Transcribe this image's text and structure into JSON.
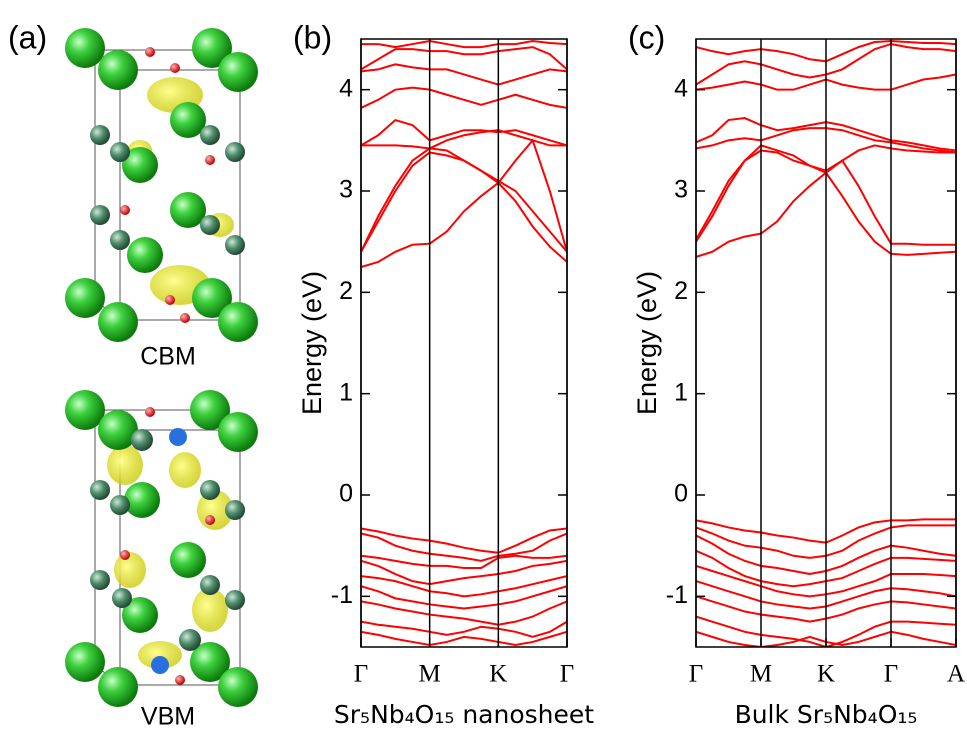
{
  "panel_a": {
    "label": "(a)",
    "structures": [
      {
        "label": "CBM"
      },
      {
        "label": "VBM"
      }
    ]
  },
  "chart_data": [
    {
      "type": "line",
      "label": "(b)",
      "ylabel": "Energy (eV)",
      "xlabel": "Sr₅Nb₄O₁₅ nanosheet",
      "color": "#ff0000",
      "xgrid": true,
      "x": [
        0,
        0.25,
        0.5,
        0.75,
        1,
        1.25,
        1.5,
        1.75,
        2,
        2.25,
        2.5,
        2.75,
        3
      ],
      "xlim": [
        0,
        3
      ],
      "xticks": [
        {
          "value": 0,
          "label": "Γ"
        },
        {
          "value": 1,
          "label": "M"
        },
        {
          "value": 2,
          "label": "K"
        },
        {
          "value": 3,
          "label": "Γ"
        }
      ],
      "ylim": [
        -1.5,
        4.5
      ],
      "yticks": [
        -1,
        0,
        1,
        2,
        3,
        4
      ],
      "series": [
        {
          "values": [
            2.25,
            2.3,
            2.4,
            2.47,
            2.48,
            2.6,
            2.8,
            2.95,
            3.08,
            2.9,
            2.65,
            2.45,
            2.3
          ]
        },
        {
          "values": [
            2.4,
            2.7,
            3.0,
            3.25,
            3.38,
            3.35,
            3.3,
            3.2,
            3.08,
            3.3,
            3.5,
            3.0,
            2.4
          ]
        },
        {
          "values": [
            2.4,
            2.75,
            3.05,
            3.3,
            3.42,
            3.4,
            3.3,
            3.2,
            3.1,
            3.0,
            2.8,
            2.6,
            2.4
          ]
        },
        {
          "values": [
            3.45,
            3.45,
            3.45,
            3.44,
            3.42,
            3.5,
            3.55,
            3.58,
            3.6,
            3.55,
            3.5,
            3.45,
            3.45
          ]
        },
        {
          "values": [
            3.45,
            3.55,
            3.7,
            3.65,
            3.5,
            3.55,
            3.6,
            3.6,
            3.58,
            3.6,
            3.55,
            3.5,
            3.45
          ]
        },
        {
          "values": [
            3.82,
            3.9,
            4.0,
            4.02,
            4.0,
            3.95,
            3.9,
            3.85,
            3.9,
            3.95,
            3.9,
            3.85,
            3.82
          ]
        },
        {
          "values": [
            4.18,
            4.2,
            4.25,
            4.22,
            4.2,
            4.2,
            4.15,
            4.1,
            4.05,
            4.1,
            4.15,
            4.2,
            4.18
          ]
        },
        {
          "values": [
            4.2,
            4.3,
            4.4,
            4.4,
            4.38,
            4.38,
            4.35,
            4.35,
            4.38,
            4.4,
            4.42,
            4.35,
            4.2
          ]
        },
        {
          "values": [
            4.45,
            4.45,
            4.42,
            4.45,
            4.48,
            4.45,
            4.42,
            4.42,
            4.45,
            4.45,
            4.48,
            4.46,
            4.45
          ]
        },
        {
          "values": [
            -0.33,
            -0.36,
            -0.4,
            -0.43,
            -0.45,
            -0.48,
            -0.52,
            -0.55,
            -0.57,
            -0.5,
            -0.42,
            -0.35,
            -0.33
          ]
        },
        {
          "values": [
            -0.38,
            -0.42,
            -0.5,
            -0.55,
            -0.58,
            -0.6,
            -0.62,
            -0.65,
            -0.6,
            -0.58,
            -0.55,
            -0.45,
            -0.38
          ]
        },
        {
          "values": [
            -0.6,
            -0.62,
            -0.65,
            -0.68,
            -0.7,
            -0.7,
            -0.72,
            -0.72,
            -0.62,
            -0.6,
            -0.62,
            -0.62,
            -0.6
          ]
        },
        {
          "values": [
            -0.65,
            -0.7,
            -0.78,
            -0.85,
            -0.88,
            -0.85,
            -0.82,
            -0.8,
            -0.78,
            -0.75,
            -0.7,
            -0.68,
            -0.65
          ]
        },
        {
          "values": [
            -0.8,
            -0.82,
            -0.85,
            -0.9,
            -0.95,
            -0.97,
            -1.0,
            -0.98,
            -0.95,
            -0.92,
            -0.88,
            -0.84,
            -0.8
          ]
        },
        {
          "values": [
            -0.9,
            -0.95,
            -1.02,
            -1.05,
            -1.08,
            -1.1,
            -1.12,
            -1.1,
            -1.08,
            -1.05,
            -1.0,
            -0.95,
            -0.9
          ]
        },
        {
          "values": [
            -1.05,
            -1.08,
            -1.12,
            -1.15,
            -1.18,
            -1.2,
            -1.22,
            -1.25,
            -1.28,
            -1.25,
            -1.2,
            -1.12,
            -1.05
          ]
        },
        {
          "values": [
            -1.25,
            -1.28,
            -1.3,
            -1.32,
            -1.35,
            -1.38,
            -1.35,
            -1.3,
            -1.32,
            -1.35,
            -1.4,
            -1.35,
            -1.25
          ]
        },
        {
          "values": [
            -1.35,
            -1.38,
            -1.42,
            -1.45,
            -1.48,
            -1.45,
            -1.4,
            -1.42,
            -1.45,
            -1.48,
            -1.45,
            -1.4,
            -1.35
          ]
        }
      ]
    },
    {
      "type": "line",
      "label": "(c)",
      "ylabel": "Energy (eV)",
      "xlabel": "Bulk Sr₅Nb₄O₁₅",
      "color": "#ff0000",
      "xgrid": true,
      "x": [
        0,
        0.25,
        0.5,
        0.75,
        1,
        1.25,
        1.5,
        1.75,
        2,
        2.25,
        2.5,
        2.75,
        3,
        3.25,
        3.5,
        3.75,
        4
      ],
      "xlim": [
        0,
        4
      ],
      "xticks": [
        {
          "value": 0,
          "label": "Γ"
        },
        {
          "value": 1,
          "label": "M"
        },
        {
          "value": 2,
          "label": "K"
        },
        {
          "value": 3,
          "label": "Γ"
        },
        {
          "value": 4,
          "label": "A"
        }
      ],
      "ylim": [
        -1.5,
        4.5
      ],
      "yticks": [
        -1,
        0,
        1,
        2,
        3,
        4
      ],
      "series": [
        {
          "values": [
            2.35,
            2.4,
            2.5,
            2.55,
            2.58,
            2.7,
            2.9,
            3.05,
            3.18,
            2.95,
            2.7,
            2.5,
            2.38,
            2.37,
            2.38,
            2.39,
            2.4
          ]
        },
        {
          "values": [
            2.5,
            2.75,
            3.05,
            3.3,
            3.45,
            3.4,
            3.35,
            3.25,
            3.18,
            3.3,
            3.05,
            2.75,
            2.48,
            2.48,
            2.47,
            2.47,
            2.47
          ]
        },
        {
          "values": [
            2.52,
            2.8,
            3.1,
            3.3,
            3.4,
            3.38,
            3.3,
            3.25,
            3.2,
            3.3,
            3.4,
            3.45,
            3.42,
            3.4,
            3.39,
            3.38,
            3.38
          ]
        },
        {
          "values": [
            3.42,
            3.45,
            3.5,
            3.52,
            3.5,
            3.55,
            3.6,
            3.62,
            3.62,
            3.6,
            3.55,
            3.5,
            3.48,
            3.45,
            3.42,
            3.4,
            3.38
          ]
        },
        {
          "values": [
            3.48,
            3.55,
            3.7,
            3.72,
            3.65,
            3.6,
            3.62,
            3.65,
            3.68,
            3.65,
            3.6,
            3.55,
            3.5,
            3.48,
            3.45,
            3.42,
            3.4
          ]
        },
        {
          "values": [
            4.0,
            4.02,
            4.05,
            4.08,
            4.05,
            4.0,
            4.0,
            4.05,
            4.1,
            4.05,
            4.02,
            4.0,
            4.0,
            4.05,
            4.1,
            4.12,
            4.15
          ]
        },
        {
          "values": [
            4.05,
            4.15,
            4.25,
            4.28,
            4.25,
            4.2,
            4.15,
            4.12,
            4.15,
            4.2,
            4.3,
            4.4,
            4.45,
            4.42,
            4.4,
            4.4,
            4.38
          ]
        },
        {
          "values": [
            4.42,
            4.38,
            4.35,
            4.38,
            4.4,
            4.38,
            4.35,
            4.3,
            4.28,
            4.35,
            4.42,
            4.47,
            4.48,
            4.47,
            4.46,
            4.46,
            4.45
          ]
        },
        {
          "values": [
            -0.25,
            -0.28,
            -0.32,
            -0.35,
            -0.37,
            -0.4,
            -0.42,
            -0.45,
            -0.47,
            -0.4,
            -0.32,
            -0.27,
            -0.25,
            -0.25,
            -0.24,
            -0.24,
            -0.24
          ]
        },
        {
          "values": [
            -0.32,
            -0.38,
            -0.45,
            -0.5,
            -0.52,
            -0.55,
            -0.6,
            -0.62,
            -0.6,
            -0.55,
            -0.45,
            -0.38,
            -0.32,
            -0.3,
            -0.3,
            -0.3,
            -0.3
          ]
        },
        {
          "values": [
            -0.4,
            -0.48,
            -0.58,
            -0.65,
            -0.7,
            -0.72,
            -0.75,
            -0.78,
            -0.75,
            -0.7,
            -0.62,
            -0.55,
            -0.5,
            -0.52,
            -0.55,
            -0.58,
            -0.6
          ]
        },
        {
          "values": [
            -0.55,
            -0.62,
            -0.72,
            -0.8,
            -0.85,
            -0.88,
            -0.9,
            -0.88,
            -0.85,
            -0.82,
            -0.75,
            -0.68,
            -0.62,
            -0.62,
            -0.63,
            -0.64,
            -0.65
          ]
        },
        {
          "values": [
            -0.7,
            -0.75,
            -0.8,
            -0.85,
            -0.9,
            -0.95,
            -0.98,
            -1.0,
            -0.98,
            -0.95,
            -0.9,
            -0.85,
            -0.78,
            -0.78,
            -0.78,
            -0.79,
            -0.8
          ]
        },
        {
          "values": [
            -0.85,
            -0.9,
            -0.95,
            -1.0,
            -1.05,
            -1.08,
            -1.1,
            -1.12,
            -1.1,
            -1.05,
            -1.0,
            -0.95,
            -0.92,
            -0.93,
            -0.95,
            -0.97,
            -1.0
          ]
        },
        {
          "values": [
            -1.0,
            -1.05,
            -1.1,
            -1.15,
            -1.18,
            -1.2,
            -1.22,
            -1.25,
            -1.22,
            -1.18,
            -1.12,
            -1.08,
            -1.05,
            -1.06,
            -1.08,
            -1.1,
            -1.12
          ]
        },
        {
          "values": [
            -1.2,
            -1.25,
            -1.3,
            -1.35,
            -1.38,
            -1.4,
            -1.42,
            -1.45,
            -1.5,
            -1.45,
            -1.38,
            -1.3,
            -1.25,
            -1.25,
            -1.26,
            -1.27,
            -1.28
          ]
        },
        {
          "values": [
            -1.35,
            -1.4,
            -1.45,
            -1.48,
            -1.5,
            -1.48,
            -1.45,
            -1.4,
            -1.45,
            -1.48,
            -1.45,
            -1.4,
            -1.35,
            -1.38,
            -1.42,
            -1.45,
            -1.48
          ]
        }
      ]
    }
  ]
}
